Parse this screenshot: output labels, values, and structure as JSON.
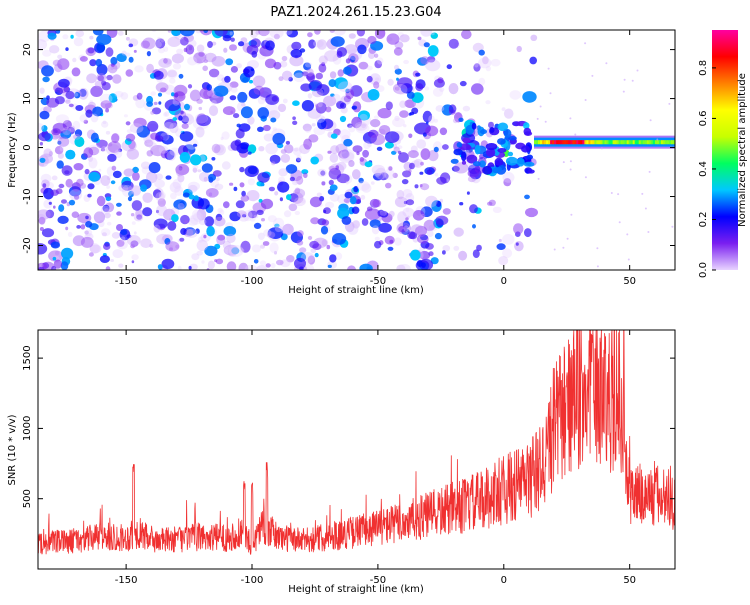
{
  "title": "PAZ1.2024.261.15.23.G04",
  "chart_data": [
    {
      "type": "heatmap",
      "name": "spectrogram",
      "xlabel": "Height of straight line (km)",
      "ylabel": "Frequency (Hz)",
      "xlim": [
        -185,
        68
      ],
      "ylim": [
        -25,
        24
      ],
      "xticks": [
        -150,
        -100,
        -50,
        0,
        50
      ],
      "yticks": [
        -20,
        -10,
        0,
        10,
        20
      ],
      "colorbar": {
        "label": "Normalized spectral amplitude",
        "range": [
          0,
          0.95
        ],
        "ticks": [
          "0.0",
          "0.2",
          "0.4",
          "0.6",
          "0.8"
        ],
        "tick_values": [
          0,
          0.2,
          0.4,
          0.6,
          0.8
        ],
        "colors": [
          "#e8d4ff",
          "#7a1ff0",
          "#0000ff",
          "#00c8ff",
          "#00ff60",
          "#c8ff00",
          "#ffff00",
          "#ff8000",
          "#ff0000",
          "#ff00a0"
        ]
      },
      "description_regions": {
        "noise": {
          "x": [
            -185,
            10
          ],
          "y": [
            -25,
            24
          ],
          "amp": [
            0.02,
            0.35
          ]
        },
        "signal": {
          "x": [
            12,
            68
          ],
          "freq": 1.0,
          "amp_peak": 0.9,
          "peak_x": [
            18,
            32
          ]
        }
      }
    },
    {
      "type": "line",
      "name": "snr",
      "xlabel": "Height of straight line (km)",
      "ylabel": "SNR (10 * v/v)",
      "xlim": [
        -185,
        68
      ],
      "ylim": [
        0,
        1700
      ],
      "xticks": [
        -150,
        -100,
        -50,
        0,
        50
      ],
      "yticks": [
        500,
        1000,
        1500
      ],
      "color": "#f03030",
      "envelope": [
        [
          -185,
          180
        ],
        [
          -170,
          200
        ],
        [
          -160,
          230
        ],
        [
          -150,
          220
        ],
        [
          -145,
          260
        ],
        [
          -140,
          200
        ],
        [
          -130,
          210
        ],
        [
          -120,
          230
        ],
        [
          -110,
          220
        ],
        [
          -104,
          260
        ],
        [
          -100,
          170
        ],
        [
          -96,
          320
        ],
        [
          -90,
          230
        ],
        [
          -80,
          200
        ],
        [
          -70,
          230
        ],
        [
          -60,
          260
        ],
        [
          -50,
          300
        ],
        [
          -40,
          330
        ],
        [
          -30,
          380
        ],
        [
          -20,
          430
        ],
        [
          -10,
          480
        ],
        [
          0,
          560
        ],
        [
          10,
          640
        ],
        [
          15,
          720
        ],
        [
          20,
          1000
        ],
        [
          25,
          1150
        ],
        [
          30,
          1220
        ],
        [
          35,
          1280
        ],
        [
          40,
          1230
        ],
        [
          45,
          1220
        ],
        [
          48,
          1200
        ],
        [
          49,
          560
        ],
        [
          55,
          520
        ],
        [
          60,
          520
        ],
        [
          68,
          500
        ]
      ],
      "spikes": [
        [
          -147,
          780
        ],
        [
          -103,
          640
        ],
        [
          -94,
          760
        ],
        [
          -100,
          620
        ],
        [
          35,
          1680
        ],
        [
          25,
          1500
        ]
      ]
    }
  ]
}
